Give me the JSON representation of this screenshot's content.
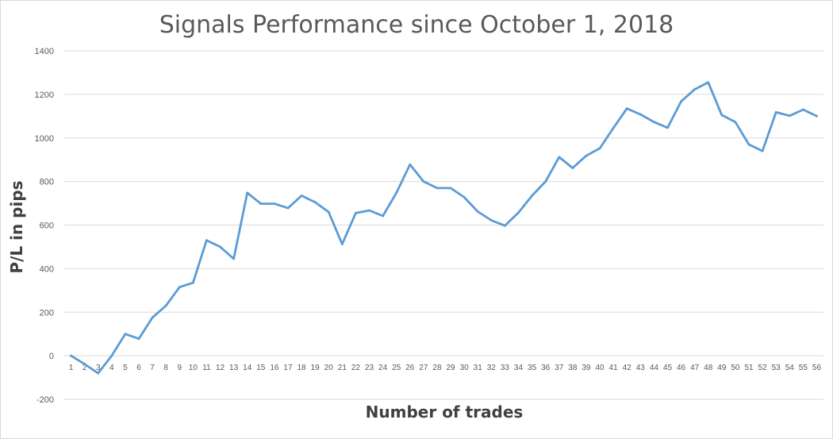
{
  "chart_data": {
    "type": "line",
    "title": "Signals Performance since October 1, 2018",
    "xlabel": "Number of trades",
    "ylabel": "P/L in pips",
    "ylim": [
      -200,
      1400
    ],
    "yticks": [
      -200,
      0,
      200,
      400,
      600,
      800,
      1000,
      1200,
      1400
    ],
    "grid": true,
    "legend": "none",
    "line_color": "#5B9BD5",
    "categories": [
      "1",
      "2",
      "3",
      "4",
      "5",
      "6",
      "7",
      "8",
      "9",
      "10",
      "11",
      "12",
      "13",
      "14",
      "15",
      "16",
      "17",
      "18",
      "19",
      "20",
      "21",
      "22",
      "23",
      "24",
      "25",
      "26",
      "27",
      "28",
      "29",
      "30",
      "31",
      "32",
      "33",
      "34",
      "35",
      "36",
      "37",
      "38",
      "39",
      "40",
      "41",
      "42",
      "43",
      "44",
      "45",
      "46",
      "47",
      "48",
      "49",
      "50",
      "51",
      "52",
      "53",
      "54",
      "55",
      "56"
    ],
    "series": [
      {
        "values": [
          0,
          -38,
          -80,
          0,
          100,
          78,
          175,
          230,
          315,
          335,
          530,
          500,
          445,
          748,
          698,
          698,
          678,
          735,
          705,
          660,
          512,
          655,
          667,
          642,
          748,
          878,
          800,
          770,
          770,
          728,
          662,
          622,
          597,
          657,
          735,
          800,
          912,
          862,
          918,
          952,
          1045,
          1135,
          1108,
          1073,
          1047,
          1168,
          1223,
          1255,
          1105,
          1073,
          970,
          940,
          1118,
          1102,
          1130,
          1100
        ]
      }
    ]
  }
}
